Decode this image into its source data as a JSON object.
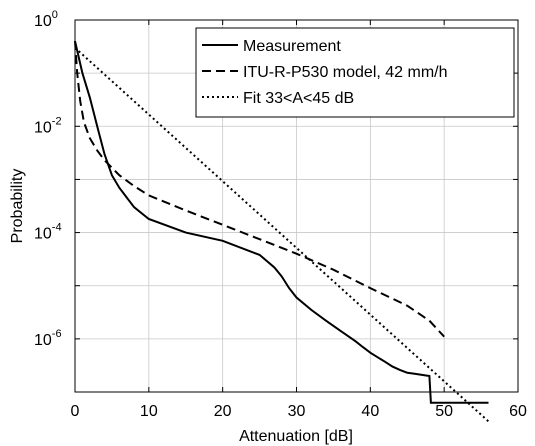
{
  "chart_data": {
    "type": "line",
    "xlabel": "Attenuation [dB]",
    "ylabel": "Probability",
    "xlim": [
      0,
      60
    ],
    "ylim": [
      1e-07,
      1
    ],
    "yscale": "log",
    "grid": true,
    "legend_position": "top-right",
    "x_ticks": [
      "0",
      "10",
      "20",
      "30",
      "40",
      "50",
      "60"
    ],
    "y_ticks": [
      {
        "base": "10",
        "exp": "0",
        "value": 1
      },
      {
        "base": "10",
        "exp": "-2",
        "value": 0.01
      },
      {
        "base": "10",
        "exp": "-4",
        "value": 0.0001
      },
      {
        "base": "10",
        "exp": "-6",
        "value": 1e-06
      }
    ],
    "series": [
      {
        "name": "Measurement",
        "style": "solid",
        "color": "#000000",
        "x": [
          0,
          0.5,
          1,
          2,
          3,
          4,
          5,
          6,
          8,
          10,
          15,
          20,
          25,
          27,
          28,
          29,
          30,
          32,
          34,
          36,
          38,
          39,
          40,
          41,
          42,
          43,
          44,
          45,
          46,
          47,
          48,
          48.2,
          56
        ],
        "y": [
          0.4,
          0.2,
          0.1,
          0.035,
          0.01,
          0.003,
          0.0012,
          0.0007,
          0.0003,
          0.00018,
          0.0001,
          7e-05,
          3.8e-05,
          2.2e-05,
          1.5e-05,
          9e-06,
          6e-06,
          3.5e-06,
          2.2e-06,
          1.4e-06,
          9e-07,
          7e-07,
          5.5e-07,
          4.5e-07,
          3.7e-07,
          3e-07,
          2.6e-07,
          2.3e-07,
          2.2e-07,
          2.1e-07,
          2e-07,
          6.3e-08,
          6.3e-08
        ]
      },
      {
        "name": "ITU-R-P530 model, 42 mm/h",
        "style": "dashed",
        "color": "#000000",
        "x": [
          0,
          0.3,
          0.7,
          1.2,
          2,
          3,
          4,
          6,
          8,
          10,
          15,
          20,
          25,
          30,
          35,
          40,
          45,
          48,
          50
        ],
        "y": [
          0.4,
          0.1,
          0.03,
          0.012,
          0.006,
          0.0035,
          0.0023,
          0.0012,
          0.00075,
          0.0005,
          0.00026,
          0.00014,
          7.5e-05,
          4e-05,
          2e-05,
          9e-06,
          4.2e-06,
          2.2e-06,
          1.1e-06
        ]
      },
      {
        "name": "Fit 33<A<45 dB",
        "style": "dotted",
        "color": "#000000",
        "x": [
          0,
          56
        ],
        "y": [
          0.3,
          2.8e-08
        ]
      }
    ]
  }
}
